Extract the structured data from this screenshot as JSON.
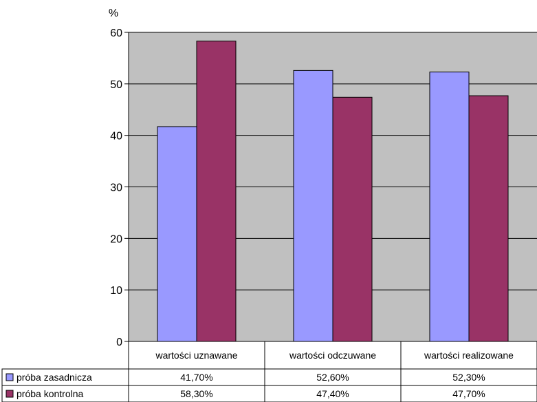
{
  "chart_data": {
    "type": "bar",
    "y_unit": "%",
    "ylim": [
      0,
      60
    ],
    "yticks": [
      0,
      10,
      20,
      30,
      40,
      50,
      60
    ],
    "grid": true,
    "plot_background": "#c0c0c0",
    "categories": [
      "wartości uznawane",
      "wartości odczuwane",
      "wartości realizowane"
    ],
    "series": [
      {
        "name": "próba zasadnicza",
        "color": "#9999ff",
        "values": [
          41.7,
          52.6,
          52.3
        ],
        "labels": [
          "41,70%",
          "52,60%",
          "52,30%"
        ]
      },
      {
        "name": "próba kontrolna",
        "color": "#993366",
        "values": [
          58.3,
          47.4,
          47.7
        ],
        "labels": [
          "58,30%",
          "47,40%",
          "47,70%"
        ]
      }
    ],
    "legend_position": "data table (bottom)"
  }
}
